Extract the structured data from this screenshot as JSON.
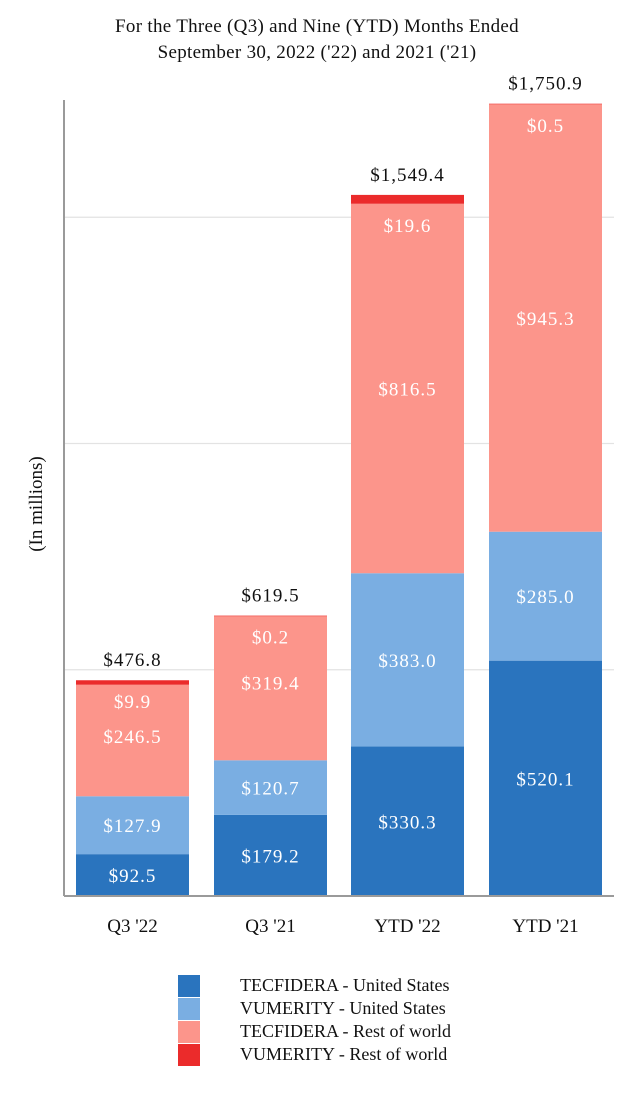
{
  "title": {
    "line1": "For the Three (Q3) and Nine (YTD) Months Ended",
    "line2": "September 30, 2022 ('22) and 2021 ('21)"
  },
  "chart_data": {
    "type": "bar",
    "stacked": true,
    "title": "For the Three (Q3) and Nine (YTD) Months Ended September 30, 2022 ('22) and 2021 ('21)",
    "xlabel": "",
    "ylabel": "(In millions)",
    "ylim": [
      0,
      2000
    ],
    "grid": true,
    "legend_position": "bottom",
    "categories": [
      "Q3 '22",
      "Q3 '21",
      "YTD '22",
      "YTD '21"
    ],
    "series": [
      {
        "name": "TECFIDERA - United States",
        "color": "#2a74be",
        "values": [
          92.5,
          179.2,
          330.3,
          520.1
        ],
        "labels": [
          "$92.5",
          "$179.2",
          "$330.3",
          "$520.1"
        ]
      },
      {
        "name": "VUMERITY - United States",
        "color": "#7aaee2",
        "values": [
          127.9,
          120.7,
          383.0,
          285.0
        ],
        "labels": [
          "$127.9",
          "$120.7",
          "$383.0",
          "$285.0"
        ]
      },
      {
        "name": "TECFIDERA - Rest of world",
        "color": "#fc958b",
        "values": [
          246.5,
          319.4,
          816.5,
          945.3
        ],
        "labels": [
          "$246.5",
          "$319.4",
          "$816.5",
          "$945.3"
        ]
      },
      {
        "name": "VUMERITY - Rest of world",
        "color": "#eb2b2b",
        "values": [
          9.9,
          0.2,
          19.6,
          0.5
        ],
        "labels": [
          "$9.9",
          "$0.2",
          "$19.6",
          "$0.5"
        ]
      }
    ],
    "totals": [
      476.8,
      619.5,
      1549.4,
      1750.9
    ],
    "total_labels": [
      "$476.8",
      "$619.5",
      "$1,549.4",
      "$1,750.9"
    ]
  }
}
